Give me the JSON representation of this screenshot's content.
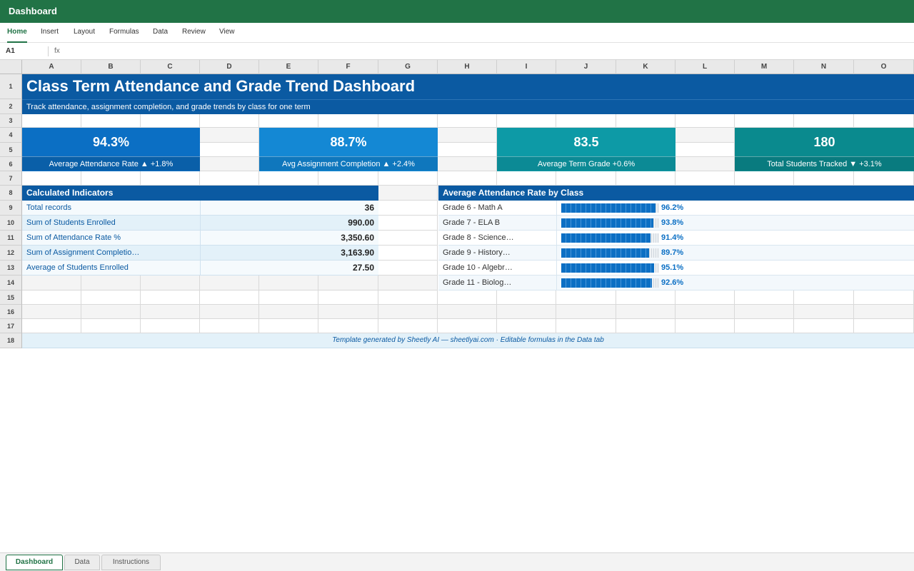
{
  "app": {
    "title": "Dashboard"
  },
  "ribbon": {
    "tabs": [
      "Home",
      "Insert",
      "Layout",
      "Formulas",
      "Data",
      "Review",
      "View"
    ],
    "active": "Home"
  },
  "formula_bar": {
    "cell_ref": "A1",
    "fx_label": "fx",
    "value": ""
  },
  "columns": [
    "A",
    "B",
    "C",
    "D",
    "E",
    "F",
    "G",
    "H",
    "I",
    "J",
    "K",
    "L",
    "M",
    "N",
    "O"
  ],
  "rows": [
    "1",
    "2",
    "3",
    "4",
    "5",
    "6",
    "7",
    "8",
    "9",
    "10",
    "11",
    "12",
    "13",
    "14",
    "15",
    "16",
    "17",
    "18"
  ],
  "dashboard": {
    "title": "Class Term Attendance and Grade Trend Dashboard",
    "subtitle": "Track attendance, assignment completion, and grade trends by class for one term",
    "kpis": [
      {
        "value": "94.3%",
        "label": "Average Attendance Rate ▲ +1.8%",
        "color": "#0b6fc4",
        "label_color": "#0a5fa8"
      },
      {
        "value": "88.7%",
        "label": "Avg Assignment Completion ▲ +2.4%",
        "color": "#1488d4",
        "label_color": "#0f77bd"
      },
      {
        "value": "83.5",
        "label": "Average Term Grade +0.6%",
        "color": "#0d9aa6",
        "label_color": "#0c8a95"
      },
      {
        "value": "180",
        "label": "Total Students Tracked ▼ +3.1%",
        "color": "#0a8a8e",
        "label_color": "#097b7f"
      }
    ],
    "indicators": {
      "header": "Calculated Indicators",
      "rows": [
        {
          "name": "Total records",
          "value": "36"
        },
        {
          "name": "Sum of Students Enrolled",
          "value": "990.00"
        },
        {
          "name": "Sum of Attendance Rate %",
          "value": "3,350.60"
        },
        {
          "name": "Sum of Assignment Completio…",
          "value": "3,163.90"
        },
        {
          "name": "Average of Students Enrolled",
          "value": "27.50"
        }
      ]
    },
    "attendance_chart": {
      "header": "Average Attendance Rate by Class",
      "bar_color": "#0b6fc4"
    },
    "footer_note": "Template generated by Sheetly AI — sheetlyai.com · Editable formulas in the Data tab"
  },
  "chart_data": {
    "type": "bar",
    "title": "Average Attendance Rate by Class",
    "categories": [
      "Grade 6 - Math A",
      "Grade 7 - ELA B",
      "Grade 8 - Science…",
      "Grade 9 - History…",
      "Grade 10 - Algebr…",
      "Grade 11 - Biolog…"
    ],
    "values": [
      96.2,
      93.8,
      91.4,
      89.7,
      95.1,
      92.6
    ],
    "labels": [
      "96.2%",
      "93.8%",
      "91.4%",
      "89.7%",
      "95.1%",
      "92.6%"
    ],
    "ylim": [
      0,
      100
    ]
  },
  "sheet_tabs": [
    "Dashboard",
    "Data",
    "Instructions"
  ],
  "active_sheet": "Dashboard"
}
